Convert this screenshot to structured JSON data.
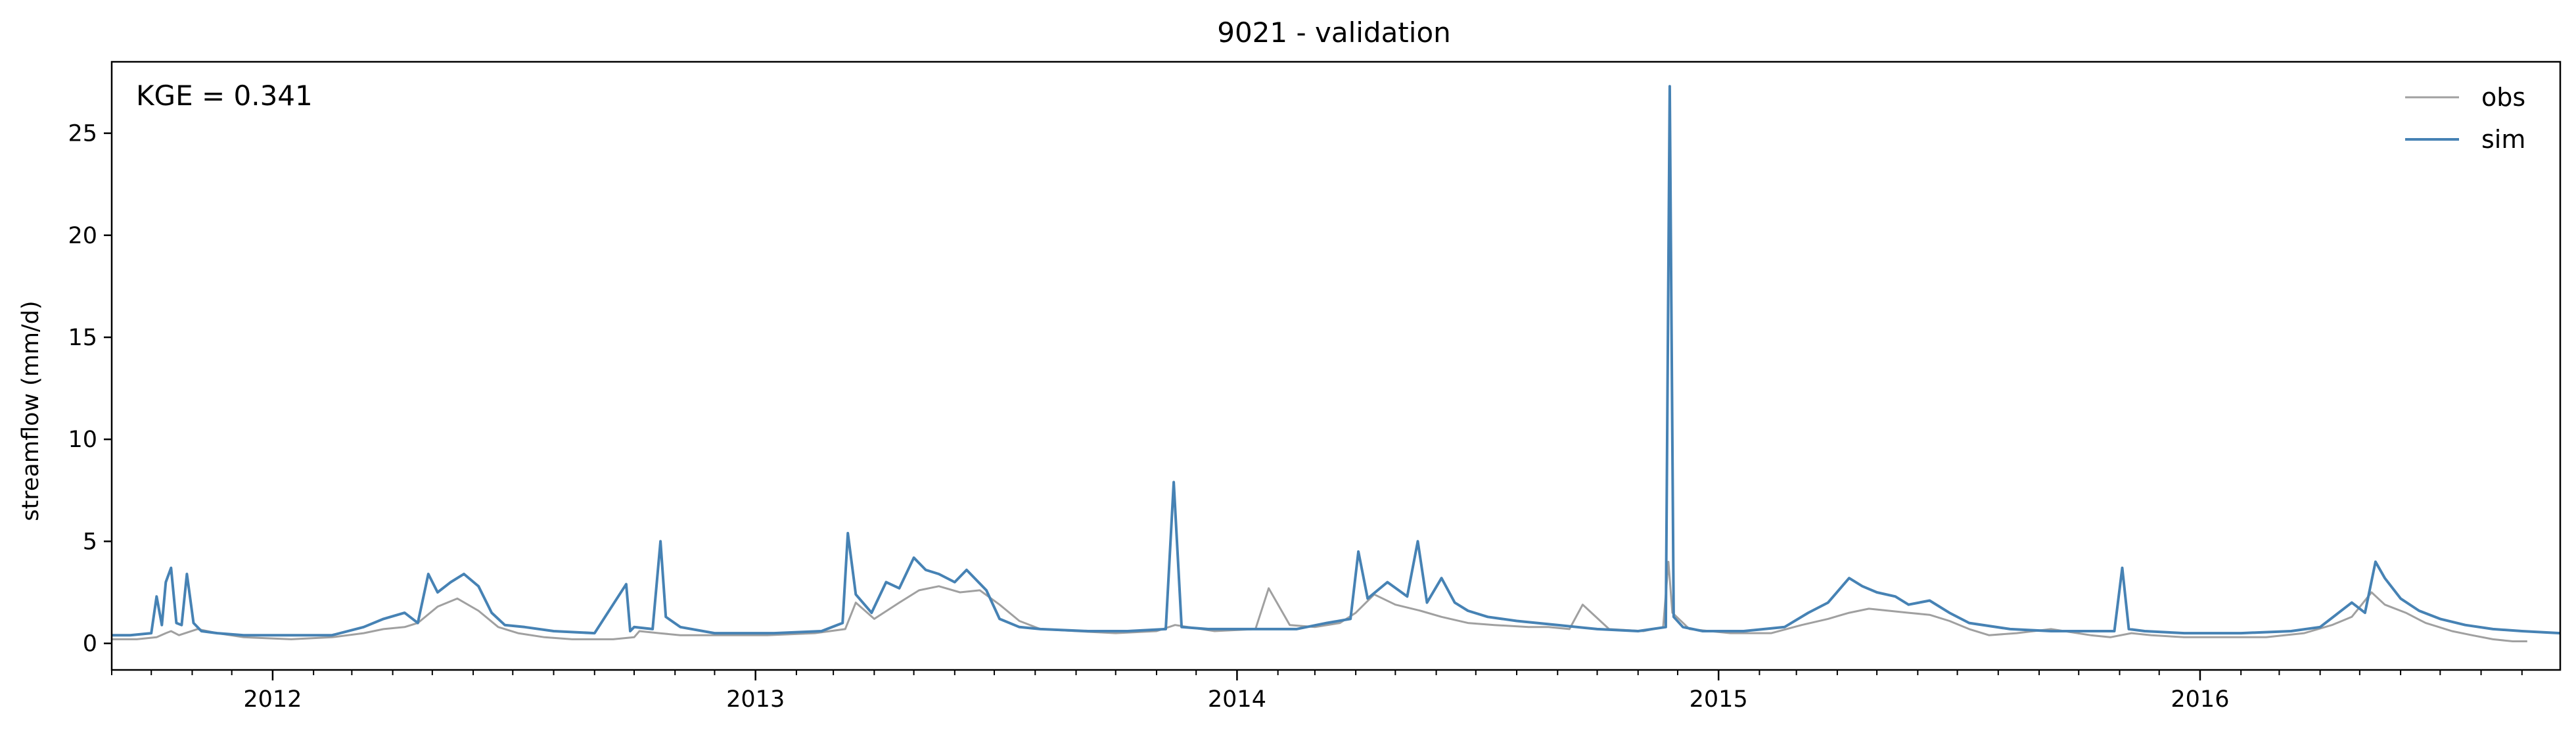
{
  "chart_data": {
    "type": "line",
    "title": "9021 - validation",
    "xlabel": "",
    "ylabel": "streamflow (mm/d)",
    "annotation": "KGE = 0.341",
    "legend_position": "top-right",
    "grid": false,
    "xlim": [
      "2011-09-01",
      "2016-09-30"
    ],
    "ylim": [
      -1.3,
      28.5
    ],
    "yticks": [
      0,
      5,
      10,
      15,
      20,
      25
    ],
    "xticks": [
      {
        "date": "2012-01-01",
        "label": "2012"
      },
      {
        "date": "2013-01-01",
        "label": "2013"
      },
      {
        "date": "2014-01-01",
        "label": "2014"
      },
      {
        "date": "2015-01-01",
        "label": "2015"
      },
      {
        "date": "2016-01-01",
        "label": "2016"
      }
    ],
    "series": [
      {
        "name": "obs",
        "color": "#a0a0a0",
        "x": [
          "2011-09-01",
          "2011-09-20",
          "2011-10-05",
          "2011-10-12",
          "2011-10-16",
          "2011-10-22",
          "2011-11-05",
          "2011-11-20",
          "2011-12-10",
          "2012-01-15",
          "2012-02-15",
          "2012-03-10",
          "2012-03-25",
          "2012-04-10",
          "2012-04-20",
          "2012-05-05",
          "2012-05-20",
          "2012-06-05",
          "2012-06-20",
          "2012-07-05",
          "2012-07-25",
          "2012-08-15",
          "2012-09-15",
          "2012-10-01",
          "2012-10-05",
          "2012-10-20",
          "2012-11-05",
          "2012-12-01",
          "2013-01-10",
          "2013-02-15",
          "2013-03-10",
          "2013-03-18",
          "2013-04-01",
          "2013-04-20",
          "2013-05-05",
          "2013-05-20",
          "2013-06-05",
          "2013-06-20",
          "2013-07-05",
          "2013-07-20",
          "2013-08-05",
          "2013-09-01",
          "2013-10-01",
          "2013-11-01",
          "2013-11-15",
          "2013-12-15",
          "2014-01-15",
          "2014-01-25",
          "2014-02-10",
          "2014-03-01",
          "2014-03-20",
          "2014-04-01",
          "2014-04-15",
          "2014-05-01",
          "2014-05-20",
          "2014-06-05",
          "2014-06-25",
          "2014-07-15",
          "2014-08-10",
          "2014-08-25",
          "2014-09-10",
          "2014-09-20",
          "2014-10-10",
          "2014-11-05",
          "2014-11-20",
          "2014-11-24",
          "2014-11-27",
          "2014-12-10",
          "2015-01-10",
          "2015-02-10",
          "2015-03-05",
          "2015-03-25",
          "2015-04-10",
          "2015-04-25",
          "2015-05-10",
          "2015-05-25",
          "2015-06-10",
          "2015-06-25",
          "2015-07-10",
          "2015-07-25",
          "2015-08-15",
          "2015-09-10",
          "2015-10-10",
          "2015-10-25",
          "2015-11-10",
          "2015-11-25",
          "2015-12-20",
          "2016-01-20",
          "2016-02-20",
          "2016-03-20",
          "2016-04-10",
          "2016-04-25",
          "2016-05-10",
          "2016-05-20",
          "2016-06-05",
          "2016-06-20",
          "2016-07-10",
          "2016-07-25",
          "2016-08-10",
          "2016-08-25",
          "2016-09-05",
          "2016-09-20",
          "2016-09-30"
        ],
        "values": [
          0.2,
          0.2,
          0.3,
          0.5,
          0.6,
          0.4,
          0.7,
          0.5,
          0.3,
          0.2,
          0.3,
          0.5,
          0.7,
          0.8,
          1.0,
          1.8,
          2.2,
          1.6,
          0.8,
          0.5,
          0.3,
          0.2,
          0.2,
          0.3,
          0.6,
          0.5,
          0.4,
          0.4,
          0.4,
          0.5,
          0.7,
          2.0,
          1.2,
          2.0,
          2.6,
          2.8,
          2.5,
          2.6,
          1.9,
          1.1,
          0.7,
          0.6,
          0.5,
          0.6,
          0.9,
          0.6,
          0.7,
          2.7,
          0.9,
          0.8,
          1.0,
          1.5,
          2.4,
          1.9,
          1.6,
          1.3,
          1.0,
          0.9,
          0.8,
          0.8,
          0.7,
          1.9,
          0.7,
          0.6,
          0.8,
          4.0,
          1.5,
          0.7,
          0.5,
          0.5,
          0.9,
          1.2,
          1.5,
          1.7,
          1.6,
          1.5,
          1.4,
          1.1,
          0.7,
          0.4,
          0.5,
          0.7,
          0.4,
          0.3,
          0.5,
          0.4,
          0.3,
          0.3,
          0.3,
          0.5,
          0.9,
          1.3,
          2.5,
          1.9,
          1.5,
          1.0,
          0.6,
          0.4,
          0.2,
          0.1,
          0.1,
          null,
          0.2
        ]
      },
      {
        "name": "sim",
        "color": "#4682b4",
        "x": [
          "2011-09-01",
          "2011-09-15",
          "2011-10-01",
          "2011-10-05",
          "2011-10-09",
          "2011-10-12",
          "2011-10-16",
          "2011-10-20",
          "2011-10-24",
          "2011-10-28",
          "2011-11-02",
          "2011-11-08",
          "2011-11-20",
          "2011-12-10",
          "2012-01-15",
          "2012-02-15",
          "2012-03-10",
          "2012-03-25",
          "2012-04-10",
          "2012-04-20",
          "2012-04-28",
          "2012-05-05",
          "2012-05-15",
          "2012-05-25",
          "2012-06-05",
          "2012-06-15",
          "2012-06-25",
          "2012-07-10",
          "2012-08-01",
          "2012-09-01",
          "2012-09-25",
          "2012-09-28",
          "2012-10-01",
          "2012-10-15",
          "2012-10-21",
          "2012-10-25",
          "2012-11-05",
          "2012-12-01",
          "2013-01-15",
          "2013-02-20",
          "2013-03-08",
          "2013-03-12",
          "2013-03-18",
          "2013-03-30",
          "2013-04-10",
          "2013-04-20",
          "2013-05-01",
          "2013-05-10",
          "2013-05-20",
          "2013-06-01",
          "2013-06-10",
          "2013-06-25",
          "2013-07-05",
          "2013-07-20",
          "2013-08-05",
          "2013-09-10",
          "2013-10-10",
          "2013-11-08",
          "2013-11-14",
          "2013-11-20",
          "2013-12-10",
          "2014-01-15",
          "2014-02-15",
          "2014-03-10",
          "2014-03-28",
          "2014-04-03",
          "2014-04-10",
          "2014-04-25",
          "2014-05-10",
          "2014-05-18",
          "2014-05-25",
          "2014-06-05",
          "2014-06-15",
          "2014-06-25",
          "2014-07-10",
          "2014-08-01",
          "2014-09-01",
          "2014-10-01",
          "2014-11-01",
          "2014-11-22",
          "2014-11-25",
          "2014-11-28",
          "2014-12-05",
          "2014-12-20",
          "2015-01-20",
          "2015-02-20",
          "2015-03-10",
          "2015-03-25",
          "2015-04-10",
          "2015-04-20",
          "2015-05-01",
          "2015-05-15",
          "2015-05-25",
          "2015-06-10",
          "2015-06-25",
          "2015-07-10",
          "2015-08-10",
          "2015-09-10",
          "2015-10-10",
          "2015-10-28",
          "2015-11-03",
          "2015-11-08",
          "2015-11-20",
          "2015-12-20",
          "2016-02-01",
          "2016-03-10",
          "2016-04-01",
          "2016-04-15",
          "2016-04-25",
          "2016-05-05",
          "2016-05-13",
          "2016-05-20",
          "2016-06-01",
          "2016-06-15",
          "2016-07-01",
          "2016-07-20",
          "2016-08-10",
          "2016-09-01",
          "2016-09-30"
        ],
        "values": [
          0.4,
          0.4,
          0.5,
          2.3,
          0.9,
          3.0,
          3.7,
          1.0,
          0.9,
          3.4,
          1.0,
          0.6,
          0.5,
          0.4,
          0.4,
          0.4,
          0.8,
          1.2,
          1.5,
          1.0,
          3.4,
          2.5,
          3.0,
          3.4,
          2.8,
          1.5,
          0.9,
          0.8,
          0.6,
          0.5,
          2.9,
          0.6,
          0.8,
          0.7,
          5.0,
          1.3,
          0.8,
          0.5,
          0.5,
          0.6,
          1.0,
          5.4,
          2.4,
          1.5,
          3.0,
          2.7,
          4.2,
          3.6,
          3.4,
          3.0,
          3.6,
          2.6,
          1.2,
          0.8,
          0.7,
          0.6,
          0.6,
          0.7,
          7.9,
          0.8,
          0.7,
          0.7,
          0.7,
          1.0,
          1.2,
          4.5,
          2.2,
          3.0,
          2.3,
          5.0,
          2.0,
          3.2,
          2.0,
          1.6,
          1.3,
          1.1,
          0.9,
          0.7,
          0.6,
          0.8,
          27.3,
          1.3,
          0.8,
          0.6,
          0.6,
          0.8,
          1.5,
          2.0,
          3.2,
          2.8,
          2.5,
          2.3,
          1.9,
          2.1,
          1.5,
          1.0,
          0.7,
          0.6,
          0.6,
          0.6,
          3.7,
          0.7,
          0.6,
          0.5,
          0.5,
          0.6,
          0.8,
          1.5,
          2.0,
          1.5,
          4.0,
          3.2,
          2.2,
          1.6,
          1.2,
          0.9,
          0.7,
          0.6,
          0.5
        ]
      }
    ]
  }
}
